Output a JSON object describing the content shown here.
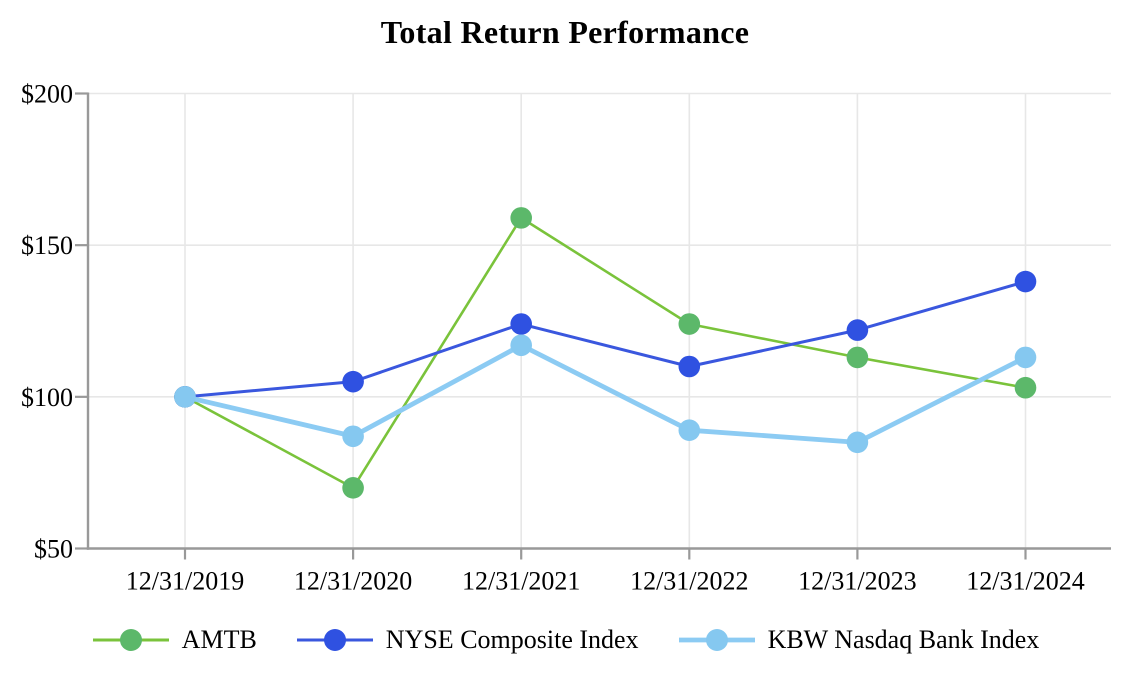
{
  "chart_data": {
    "type": "line",
    "title": "Total Return Performance",
    "xlabel": "",
    "ylabel": "",
    "x": [
      "12/31/2019",
      "12/31/2020",
      "12/31/2021",
      "12/31/2022",
      "12/31/2023",
      "12/31/2024"
    ],
    "ylim": [
      50,
      200
    ],
    "y_ticks": [
      50,
      100,
      150,
      200
    ],
    "y_tick_labels": [
      "$50",
      "$100",
      "$150",
      "$200"
    ],
    "grid": true,
    "legend_position": "bottom",
    "series": [
      {
        "name": "AMTB",
        "values": [
          100,
          70,
          159,
          124,
          113,
          103
        ],
        "line_color": "#7AC33B",
        "marker_color": "#5CB86A",
        "line_width": 2.6
      },
      {
        "name": "NYSE Composite Index",
        "values": [
          100,
          105,
          124,
          110,
          122,
          138
        ],
        "line_color": "#3A57DE",
        "marker_color": "#2F51E1",
        "line_width": 3
      },
      {
        "name": "KBW Nasdaq Bank Index",
        "values": [
          100,
          87,
          117,
          89,
          85,
          113
        ],
        "line_color": "#8CCBF3",
        "marker_color": "#85C8F0",
        "line_width": 4.8
      }
    ],
    "colors": {
      "axis": "#999999",
      "gridline": "#e7e7e7",
      "background": "#ffffff",
      "text": "#000000"
    }
  }
}
